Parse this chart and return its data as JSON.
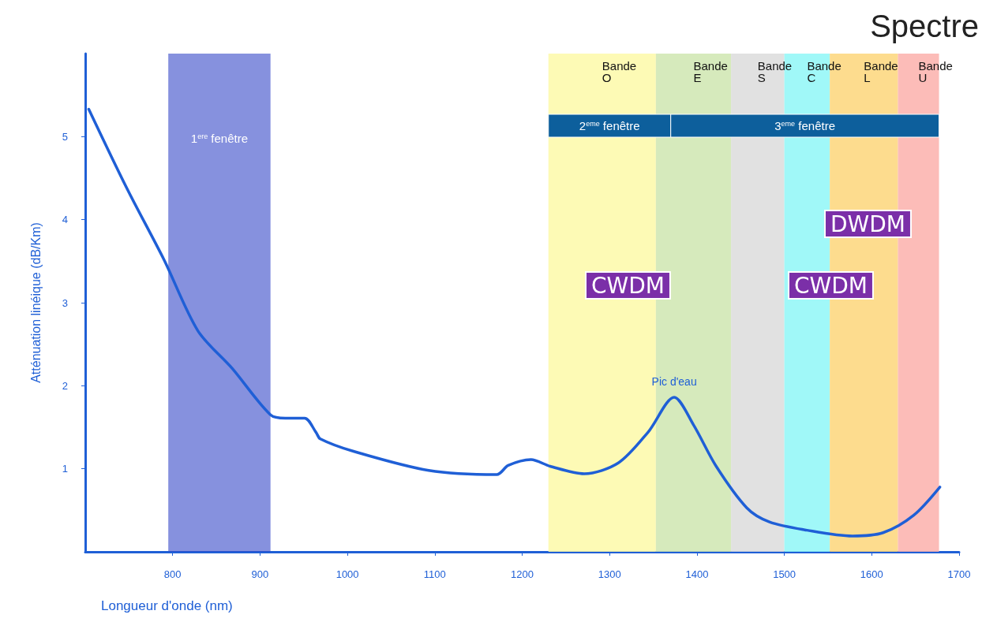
{
  "chart_data": {
    "type": "line",
    "title": "Spectre",
    "xlabel": "Longueur d'onde (nm)",
    "ylabel": "Atténuation linéique (dB/Km)",
    "x": [
      704,
      747,
      790,
      829,
      868,
      912,
      929,
      951,
      964,
      969,
      1007,
      1093,
      1171,
      1184,
      1210,
      1232,
      1271,
      1310,
      1344,
      1374,
      1396,
      1422,
      1457,
      1483,
      1526,
      1578,
      1613,
      1648,
      1678
    ],
    "series": [
      {
        "color": "#1f5fd6",
        "values": [
          5.33,
          4.39,
          3.52,
          2.66,
          2.21,
          1.65,
          1.61,
          1.61,
          1.44,
          1.36,
          1.21,
          0.98,
          0.93,
          1.04,
          1.11,
          1.03,
          0.94,
          1.07,
          1.44,
          1.86,
          1.53,
          1.03,
          0.53,
          0.36,
          0.26,
          0.19,
          0.23,
          0.44,
          0.78
        ]
      }
    ],
    "xlim": [
      700,
      1700
    ],
    "xticks": [
      800,
      900,
      1000,
      1100,
      1200,
      1300,
      1400,
      1500,
      1600,
      1700
    ],
    "ylim": [
      0,
      6
    ],
    "yticks": [
      1,
      2,
      3,
      4,
      5
    ],
    "bands": [
      {
        "axis": "x",
        "from": 795,
        "to": 912,
        "label": "1$^{ere}$ fenêtre",
        "color": "#3548c8"
      },
      {
        "axis": "x",
        "from": 1230,
        "to": 1353,
        "label": "Bande\nO",
        "color": "#fdf9a8"
      },
      {
        "axis": "x",
        "from": 1353,
        "to": 1439,
        "label": "Bande\nE",
        "color": "#cfe6b0"
      },
      {
        "axis": "x",
        "from": 1439,
        "to": 1500,
        "label": "Bande\nS",
        "color": "#dcdcdc"
      },
      {
        "axis": "x",
        "from": 1500,
        "to": 1552,
        "label": "Bande\nC",
        "color": "#8ff7f7"
      },
      {
        "axis": "x",
        "from": 1552,
        "to": 1630,
        "label": "Bande\nL",
        "color": "#fdd67a"
      },
      {
        "axis": "x",
        "from": 1630,
        "to": 1677,
        "label": "Bande\nU",
        "color": "#fcb0ac"
      },
      {
        "axis": "x",
        "from": 1230,
        "to": 1370,
        "label": "2$^{eme}$ fenêtre",
        "color": "#0d5f9c"
      },
      {
        "axis": "x",
        "from": 1370,
        "to": 1677,
        "label": "3$^{eme}$ fenêtre",
        "color": "#0d5f9c"
      }
    ],
    "annotations": [
      {
        "text": "Pic d'eau",
        "x": 1374,
        "y": 1.86
      },
      "CWDM",
      "CWDM",
      "DWDM"
    ],
    "grid": false,
    "marker": "none",
    "line_style": "solid"
  }
}
